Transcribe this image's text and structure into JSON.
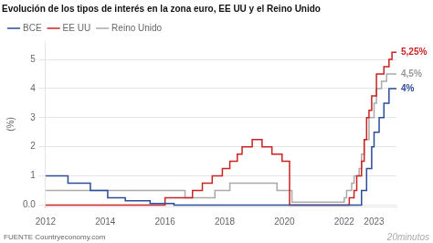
{
  "chart_data": {
    "type": "line",
    "line_style": "step",
    "title": "Evolución de los tipos de interés en la zona euro, EE UU y el Reino Unido",
    "ylabel": "(%)",
    "source": "FUENTE Countryeconomy.com",
    "watermark": "20minutos",
    "xlim": [
      2012,
      2023.75
    ],
    "xticks": [
      2012,
      2014,
      2016,
      2018,
      2020,
      2022,
      2023
    ],
    "ylim": [
      -0.05,
      5.6
    ],
    "yticks": [
      {
        "value": 0.0,
        "label": "0.0"
      },
      1,
      2,
      3,
      4,
      5
    ],
    "grid": "y",
    "legend": "upper left",
    "series": [
      {
        "name": "BCE",
        "color": "#2b4b9b",
        "x": [
          2012.0,
          2012.75,
          2013.5,
          2014.08,
          2014.67,
          2015.5,
          2016.3,
          2022.42,
          2022.58,
          2022.75,
          2022.92,
          2023.0,
          2023.17,
          2023.33,
          2023.5,
          2023.75
        ],
        "values": [
          1.0,
          0.75,
          0.5,
          0.25,
          0.15,
          0.05,
          0.0,
          0.0,
          0.5,
          1.25,
          2.0,
          2.5,
          3.0,
          3.5,
          4.0,
          4.0
        ]
      },
      {
        "name": "EE UU",
        "color": "#cc2222",
        "x": [
          2012.0,
          2015.92,
          2016.0,
          2016.92,
          2017.25,
          2017.58,
          2017.92,
          2018.17,
          2018.42,
          2018.58,
          2018.92,
          2019.25,
          2019.58,
          2019.92,
          2020.17,
          2022.08,
          2022.17,
          2022.33,
          2022.42,
          2022.58,
          2022.67,
          2022.75,
          2022.83,
          2022.92,
          2023.08,
          2023.33,
          2023.5,
          2023.6,
          2023.75
        ],
        "values": [
          0.0,
          0.0,
          0.25,
          0.5,
          0.75,
          1.0,
          1.25,
          1.5,
          1.75,
          2.0,
          2.25,
          2.0,
          1.75,
          1.5,
          0.0,
          0.0,
          0.25,
          0.5,
          1.0,
          1.5,
          2.25,
          3.0,
          3.25,
          3.75,
          4.5,
          4.75,
          5.0,
          5.25,
          5.25
        ]
      },
      {
        "name": "Reino Unido",
        "color": "#aaaaaa",
        "x": [
          2012.0,
          2016.58,
          2016.67,
          2017.58,
          2017.67,
          2018.08,
          2018.17,
          2019.67,
          2019.75,
          2020.17,
          2020.25,
          2021.92,
          2022.0,
          2022.08,
          2022.25,
          2022.33,
          2022.5,
          2022.58,
          2022.67,
          2022.75,
          2022.83,
          2023.0,
          2023.08,
          2023.25,
          2023.42,
          2023.75
        ],
        "values": [
          0.5,
          0.5,
          0.25,
          0.25,
          0.5,
          0.5,
          0.75,
          0.75,
          0.5,
          0.5,
          0.1,
          0.1,
          0.25,
          0.5,
          0.75,
          1.0,
          1.25,
          1.75,
          2.25,
          2.25,
          3.0,
          3.5,
          4.0,
          4.25,
          4.5,
          4.5
        ]
      }
    ],
    "annotations": [
      {
        "text": "5,25%",
        "y": 5.25,
        "color": "#cc2222"
      },
      {
        "text": "4,5%",
        "y": 4.5,
        "color": "#999999"
      },
      {
        "text": "4%",
        "y": 4.0,
        "color": "#2b4b9b"
      }
    ]
  }
}
